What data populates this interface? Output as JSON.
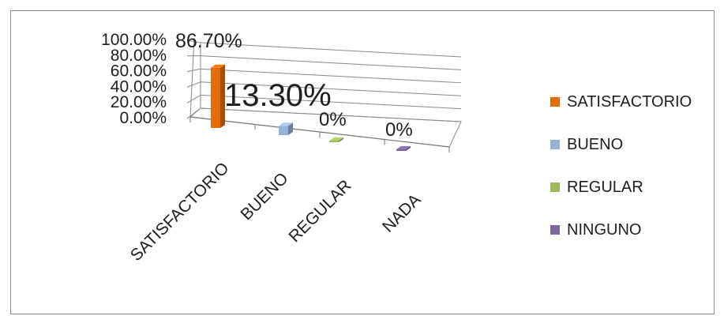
{
  "chart_data": {
    "type": "bar",
    "style": "3d-column",
    "categories": [
      "SATISFACTORIO",
      "BUENO",
      "REGULAR",
      "NADA"
    ],
    "values": [
      86.7,
      13.3,
      0,
      0
    ],
    "data_labels": [
      "86.70%",
      "13.30%",
      "0%",
      "0%"
    ],
    "yticks": [
      "0.00%",
      "20.00%",
      "40.00%",
      "60.00%",
      "80.00%",
      "100.00%"
    ],
    "ylim": [
      0,
      100
    ],
    "grid": true,
    "legend": {
      "position": "right",
      "entries": [
        {
          "label": "SATISFACTORIO",
          "color": "#e46c0a"
        },
        {
          "label": "BUENO",
          "color": "#95b3d7"
        },
        {
          "label": "REGULAR",
          "color": "#9bbb59"
        },
        {
          "label": "NINGUNO",
          "color": "#8064a2"
        }
      ]
    },
    "bar_colors": [
      "#e46c0a",
      "#95b3d7",
      "#9bbb59",
      "#8064a2"
    ]
  }
}
